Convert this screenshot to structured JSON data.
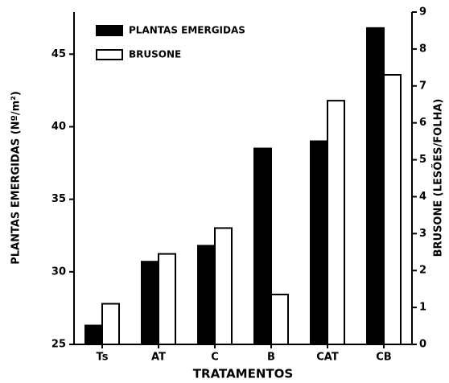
{
  "chart_data": {
    "type": "bar",
    "y_label": "PLANTAS EMERGIDAS (Nº/m²)",
    "y2_label": "BRUSONE (LESÕES/FOLHA)",
    "x_label": "TRATAMENTOS",
    "categories": [
      "Ts",
      "AT",
      "C",
      "B",
      "CAT",
      "CB"
    ],
    "series": [
      {
        "name": "PLANTAS EMERGIDAS",
        "color": "#000000",
        "values": [
          26.3,
          30.7,
          31.8,
          38.5,
          39.0,
          46.8
        ]
      },
      {
        "name": "BRUSONE",
        "color": "#ffffff",
        "axis": "y2",
        "values": [
          1.1,
          2.45,
          3.15,
          1.35,
          6.6,
          7.3
        ]
      }
    ],
    "ylim": [
      25,
      47.9
    ],
    "yticks": [
      25,
      30,
      35,
      40,
      45
    ],
    "y2lim": [
      0,
      9
    ],
    "y2ticks": [
      0,
      1,
      2,
      3,
      4,
      5,
      6,
      7,
      8,
      9
    ],
    "legend": "upper-left"
  }
}
